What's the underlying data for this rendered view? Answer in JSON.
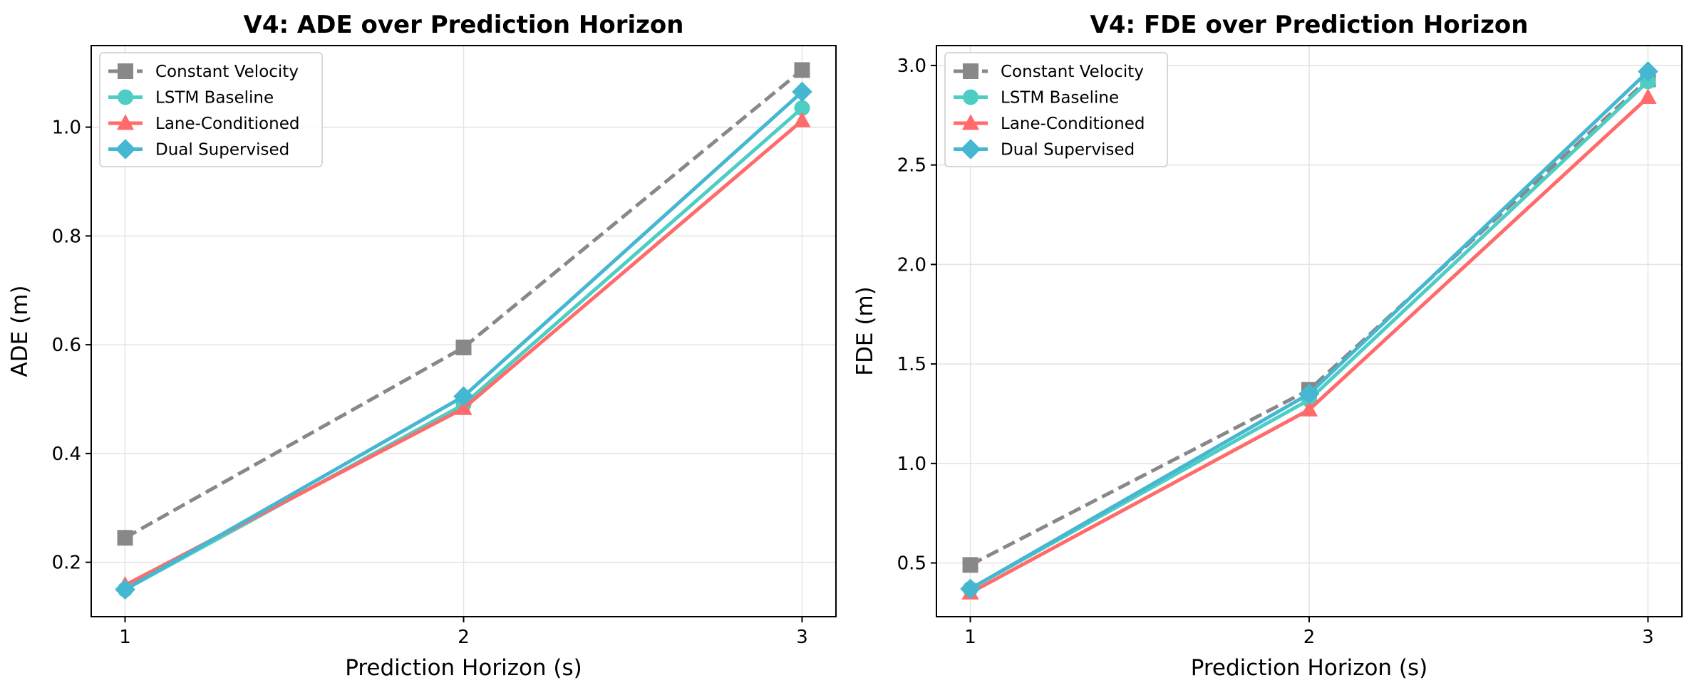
{
  "colors": {
    "Constant Velocity": "#888888",
    "LSTM Baseline": "#4ECDC4",
    "Lane-Conditioned": "#FF6B6B",
    "Dual Supervised": "#45B7D1"
  },
  "chart_data": [
    {
      "type": "line",
      "title": "V4: ADE over Prediction Horizon",
      "xlabel": "Prediction Horizon (s)",
      "ylabel": "ADE (m)",
      "x": [
        1,
        2,
        3
      ],
      "xlim": [
        0.9,
        3.1
      ],
      "ylim": [
        0.1,
        1.15
      ],
      "yticks": [
        0.2,
        0.4,
        0.6,
        0.8,
        1.0
      ],
      "ytick_labels": [
        "0.2",
        "0.4",
        "0.6",
        "0.8",
        "1.0"
      ],
      "xticks": [
        1,
        2,
        3
      ],
      "xtick_labels": [
        "1",
        "2",
        "3"
      ],
      "grid": true,
      "legend_position": "top-left",
      "series": [
        {
          "name": "Constant Velocity",
          "marker": "square",
          "dashed": true,
          "values": [
            0.245,
            0.595,
            1.105
          ]
        },
        {
          "name": "LSTM Baseline",
          "marker": "circle",
          "dashed": false,
          "values": [
            0.15,
            0.49,
            1.035
          ]
        },
        {
          "name": "Lane-Conditioned",
          "marker": "triangle",
          "dashed": false,
          "values": [
            0.158,
            0.483,
            1.012
          ]
        },
        {
          "name": "Dual Supervised",
          "marker": "diamond",
          "dashed": false,
          "values": [
            0.15,
            0.505,
            1.065
          ]
        }
      ]
    },
    {
      "type": "line",
      "title": "V4: FDE over Prediction Horizon",
      "xlabel": "Prediction Horizon (s)",
      "ylabel": "FDE (m)",
      "x": [
        1,
        2,
        3
      ],
      "xlim": [
        0.9,
        3.1
      ],
      "ylim": [
        0.23,
        3.1
      ],
      "yticks": [
        0.5,
        1.0,
        1.5,
        2.0,
        2.5,
        3.0
      ],
      "ytick_labels": [
        "0.5",
        "1.0",
        "1.5",
        "2.0",
        "2.5",
        "3.0"
      ],
      "xticks": [
        1,
        2,
        3
      ],
      "xtick_labels": [
        "1",
        "2",
        "3"
      ],
      "grid": true,
      "legend_position": "top-left",
      "series": [
        {
          "name": "Constant Velocity",
          "marker": "square",
          "dashed": true,
          "values": [
            0.49,
            1.37,
            2.93
          ]
        },
        {
          "name": "LSTM Baseline",
          "marker": "circle",
          "dashed": false,
          "values": [
            0.37,
            1.32,
            2.92
          ]
        },
        {
          "name": "Lane-Conditioned",
          "marker": "triangle",
          "dashed": false,
          "values": [
            0.35,
            1.27,
            2.84
          ]
        },
        {
          "name": "Dual Supervised",
          "marker": "diamond",
          "dashed": false,
          "values": [
            0.37,
            1.35,
            2.97
          ]
        }
      ]
    }
  ]
}
